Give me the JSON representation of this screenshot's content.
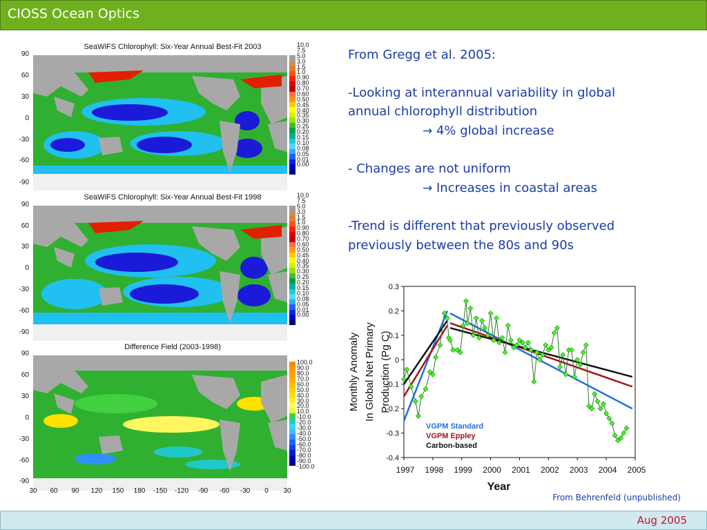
{
  "header": {
    "title": "CIOSS Ocean Optics"
  },
  "footer": {
    "date": "Aug 2005"
  },
  "maps": [
    {
      "title": "SeaWiFS Chlorophyll: Six-Year Annual Best-Fit 2003",
      "lat_ticks": [
        "90",
        "60",
        "30",
        "0",
        "-30",
        "-60",
        "-90"
      ],
      "colorbar_ticks": [
        "10.0",
        "7.5",
        "5.0",
        "3.0",
        "1.5",
        "1.0",
        "0.90",
        "0.80",
        "0.70",
        "0.60",
        "0.50",
        "0.45",
        "0.40",
        "0.35",
        "0.30",
        "0.25",
        "0.20",
        "0.15",
        "0.10",
        "0.08",
        "0.05",
        "0.01",
        "0.00"
      ]
    },
    {
      "title": "SeaWiFS Chlorophyll: Six-Year Annual Best-Fit 1998",
      "lat_ticks": [
        "90",
        "60",
        "30",
        "0",
        "-30",
        "-60",
        "-90"
      ],
      "colorbar_ticks": [
        "10.0",
        "7.5",
        "5.0",
        "3.0",
        "1.5",
        "1.0",
        "0.90",
        "0.80",
        "0.70",
        "0.60",
        "0.50",
        "0.45",
        "0.40",
        "0.35",
        "0.30",
        "0.25",
        "0.20",
        "0.15",
        "0.10",
        "0.08",
        "0.05",
        "0.01",
        "0.00"
      ]
    },
    {
      "title": "Difference Field (2003-1998)",
      "lat_ticks": [
        "90",
        "60",
        "30",
        "0",
        "-30",
        "-60",
        "-90"
      ],
      "colorbar_ticks": [
        "100.0",
        "90.0",
        "80.0",
        "70.0",
        "60.0",
        "50.0",
        "40.0",
        "30.0",
        "20.0",
        "10.0",
        "-10.0",
        "-20.0",
        "-30.0",
        "-40.0",
        "-50.0",
        "-60.0",
        "-70.0",
        "-80.0",
        "-90.0",
        "-100.0"
      ]
    }
  ],
  "colors": {
    "chl_scale": [
      "#a0a0a0",
      "#c8905a",
      "#e07a3a",
      "#ff5010",
      "#ff2000",
      "#e00000",
      "#c00000",
      "#ff7050",
      "#ff9900",
      "#ffcc00",
      "#ffff00",
      "#d8f000",
      "#a0e000",
      "#40c030",
      "#00a040",
      "#00b0a0",
      "#20c8d8",
      "#50d8ff",
      "#30a8ff",
      "#2060ff",
      "#1020e0",
      "#0000c0",
      "#000080"
    ],
    "diff_scale": [
      "#ff8c00",
      "#ff9900",
      "#ffa500",
      "#ffb000",
      "#ffc000",
      "#ffd000",
      "#ffe000",
      "#ffee30",
      "#fff660",
      "#e0ff30",
      "#40d040",
      "#20c8c8",
      "#30d8ff",
      "#50b8ff",
      "#3090ff",
      "#2060ff",
      "#1040e8",
      "#0020d0",
      "#0000b0",
      "#000090"
    ],
    "land": "#a8a8a8",
    "ocean_oligo": "#1a1ad8",
    "ocean_mid": "#20c0f0",
    "ocean_high": "#30b030",
    "coastal": "#e02000",
    "accent_title": "#6fb01f"
  },
  "lon_ticks": [
    "30",
    "60",
    "90",
    "120",
    "150",
    "180",
    "-150",
    "-120",
    "-90",
    "-60",
    "-30",
    "0",
    "30"
  ],
  "text": {
    "line1": "From Gregg et al. 2005:",
    "line2": "-Looking at interannual variability in global annual chlorophyll distribution",
    "line3": "4% global increase",
    "line4": "- Changes are not uniform",
    "line5": "Increases in coastal areas",
    "line6": "-Trend is different that previously observed previously between the 80s and 90s",
    "arrow": "→"
  },
  "credit": "From Behrenfeld (unpublished)",
  "chart_data": {
    "type": "line",
    "title": "",
    "xlabel": "Year",
    "ylabel": "Monthly Anomaly In Global Net Primary Production (Pg C)",
    "ylim": [
      -0.4,
      0.3
    ],
    "xlim": [
      1997,
      2005
    ],
    "y_ticks": [
      "0.3",
      "0.2",
      "0.1",
      "0",
      "-0.1",
      "-0.2",
      "-0.3",
      "-0.4"
    ],
    "x_ticks": [
      "1997",
      "1998",
      "1999",
      "2000",
      "2001",
      "2002",
      "2003",
      "2004",
      "2005"
    ],
    "legend": [
      "VGPM Standard",
      "VGPM Eppley",
      "Carbon-based"
    ],
    "legend_colors": [
      "#1f6fe0",
      "#a01818",
      "#111111"
    ],
    "series": [
      {
        "name": "VGPM Standard",
        "type": "trend",
        "x": [
          1997.0,
          1998.5
        ],
        "y": [
          -0.25,
          0.2
        ]
      },
      {
        "name": "VGPM Standard",
        "type": "trend",
        "x": [
          1998.6,
          2004.9
        ],
        "y": [
          0.19,
          -0.2
        ]
      },
      {
        "name": "VGPM Eppley",
        "type": "trend",
        "x": [
          1997.0,
          1998.5
        ],
        "y": [
          -0.15,
          0.14
        ]
      },
      {
        "name": "VGPM Eppley",
        "type": "trend",
        "x": [
          1998.6,
          2004.9
        ],
        "y": [
          0.15,
          -0.11
        ]
      },
      {
        "name": "Carbon-based",
        "type": "trend",
        "x": [
          1997.0,
          1998.5
        ],
        "y": [
          -0.1,
          0.16
        ]
      },
      {
        "name": "Carbon-based",
        "type": "trend",
        "x": [
          1998.6,
          2004.9
        ],
        "y": [
          0.13,
          -0.07
        ]
      }
    ],
    "observations": {
      "x": [
        1997.0,
        1997.1,
        1997.25,
        1997.4,
        1997.5,
        1997.6,
        1997.75,
        1997.9,
        1998.0,
        1998.1,
        1998.25,
        1998.4,
        1998.5,
        1998.55,
        1998.6,
        1998.7,
        1998.85,
        1998.95,
        1999.05,
        1999.15,
        1999.2,
        1999.3,
        1999.4,
        1999.5,
        1999.6,
        1999.7,
        1999.8,
        1999.9,
        2000.0,
        2000.1,
        2000.2,
        2000.3,
        2000.4,
        2000.5,
        2000.6,
        2000.7,
        2000.8,
        2000.9,
        2001.0,
        2001.1,
        2001.2,
        2001.3,
        2001.4,
        2001.5,
        2001.6,
        2001.7,
        2001.8,
        2001.9,
        2002.0,
        2002.1,
        2002.2,
        2002.3,
        2002.4,
        2002.5,
        2002.6,
        2002.7,
        2002.8,
        2002.9,
        2003.0,
        2003.1,
        2003.2,
        2003.3,
        2003.4,
        2003.5,
        2003.6,
        2003.7,
        2003.8,
        2003.9,
        2004.0,
        2004.1,
        2004.2,
        2004.3,
        2004.4,
        2004.5,
        2004.6,
        2004.7
      ],
      "y": [
        -0.08,
        -0.04,
        -0.11,
        -0.17,
        -0.23,
        -0.15,
        -0.12,
        -0.05,
        -0.06,
        0.01,
        0.06,
        0.19,
        0.17,
        0.09,
        0.08,
        0.04,
        0.04,
        0.03,
        0.14,
        0.24,
        0.15,
        0.21,
        0.1,
        0.17,
        0.09,
        0.16,
        0.13,
        0.1,
        0.19,
        0.08,
        0.17,
        0.07,
        0.09,
        0.03,
        0.14,
        0.08,
        0.05,
        0.06,
        0.08,
        0.07,
        0.05,
        0.07,
        0.04,
        -0.09,
        0.03,
        0.0,
        0.02,
        0.06,
        0.04,
        0.05,
        0.11,
        0.13,
        -0.03,
        0.02,
        -0.06,
        0.04,
        0.04,
        -0.07,
        0.0,
        -0.02,
        0.03,
        0.06,
        -0.19,
        -0.2,
        -0.14,
        -0.17,
        -0.2,
        -0.18,
        -0.22,
        -0.24,
        -0.26,
        -0.31,
        -0.33,
        -0.32,
        -0.3,
        -0.28
      ]
    }
  }
}
